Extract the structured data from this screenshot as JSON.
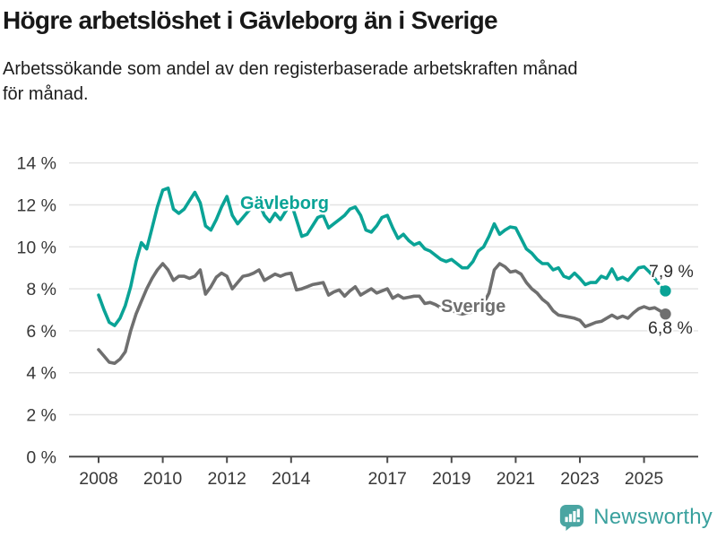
{
  "footer": {
    "brand": "Newsworthy"
  },
  "colors": {
    "gavleborg": "#0aa396",
    "sverige": "#6f6f6f",
    "brand": "#4aa5a2",
    "grid": "#e3e3e3",
    "axis": "#4b4b4b"
  },
  "chart_data": {
    "type": "line",
    "title": "Högre arbetslöshet i Gävleborg än i Sverige",
    "subtitle": "Arbetssökande som andel av den registerbaserade arbetskraften månad\nför månad.",
    "xlabel": "",
    "ylabel": "",
    "grid": "horizontal",
    "legend": "inline-labels",
    "ylim": [
      0,
      14
    ],
    "y_ticks": [
      0,
      2,
      4,
      6,
      8,
      10,
      12,
      14
    ],
    "y_tick_suffix": " %",
    "x_ticks": [
      2008,
      2010,
      2012,
      2014,
      2017,
      2019,
      2021,
      2023,
      2025
    ],
    "x_start_year": 2008.0,
    "x_step_months": 2,
    "series": [
      {
        "key": "gavleborg",
        "name": "Gävleborg",
        "end_label": "7,9 %",
        "dash_tail_points": 3,
        "values": [
          7.7,
          7.0,
          6.4,
          6.25,
          6.6,
          7.2,
          8.1,
          9.3,
          10.2,
          9.9,
          10.9,
          11.9,
          12.7,
          12.8,
          11.8,
          11.6,
          11.8,
          12.2,
          12.6,
          12.1,
          11.0,
          10.8,
          11.3,
          11.9,
          12.4,
          11.5,
          11.1,
          11.4,
          11.7,
          12.0,
          12.1,
          11.5,
          11.2,
          11.6,
          11.3,
          11.7,
          12.1,
          11.3,
          10.5,
          10.6,
          11.0,
          11.4,
          11.5,
          10.9,
          11.1,
          11.3,
          11.5,
          11.8,
          11.9,
          11.5,
          10.8,
          10.7,
          11.0,
          11.4,
          11.5,
          10.9,
          10.4,
          10.6,
          10.3,
          10.1,
          10.2,
          9.9,
          9.8,
          9.6,
          9.4,
          9.3,
          9.4,
          9.2,
          9.0,
          9.0,
          9.3,
          9.8,
          10.0,
          10.5,
          11.1,
          10.6,
          10.8,
          10.95,
          10.9,
          10.4,
          9.9,
          9.7,
          9.4,
          9.2,
          9.2,
          8.9,
          9.0,
          8.6,
          8.5,
          8.75,
          8.5,
          8.2,
          8.3,
          8.3,
          8.6,
          8.5,
          8.95,
          8.45,
          8.55,
          8.4,
          8.7,
          9.0,
          9.05,
          8.8,
          8.5,
          8.15,
          7.9
        ]
      },
      {
        "key": "sverige",
        "name": "Sverige",
        "end_label": "6,8 %",
        "dash_tail_points": 0,
        "values": [
          5.1,
          4.8,
          4.5,
          4.45,
          4.65,
          5.0,
          6.0,
          6.8,
          7.4,
          8.0,
          8.5,
          8.9,
          9.2,
          8.9,
          8.4,
          8.6,
          8.6,
          8.5,
          8.6,
          8.9,
          7.75,
          8.1,
          8.55,
          8.75,
          8.6,
          8.0,
          8.3,
          8.6,
          8.65,
          8.75,
          8.9,
          8.4,
          8.55,
          8.7,
          8.6,
          8.7,
          8.75,
          7.95,
          8.0,
          8.1,
          8.2,
          8.25,
          8.3,
          7.7,
          7.85,
          7.95,
          7.65,
          7.9,
          8.1,
          7.7,
          7.85,
          8.0,
          7.8,
          7.9,
          8.0,
          7.55,
          7.7,
          7.55,
          7.6,
          7.65,
          7.65,
          7.3,
          7.35,
          7.25,
          7.1,
          7.05,
          7.0,
          6.85,
          6.8,
          6.85,
          6.9,
          7.1,
          7.3,
          7.8,
          8.9,
          9.2,
          9.05,
          8.8,
          8.85,
          8.7,
          8.3,
          8.0,
          7.8,
          7.5,
          7.3,
          6.95,
          6.75,
          6.7,
          6.65,
          6.6,
          6.5,
          6.2,
          6.3,
          6.4,
          6.45,
          6.6,
          6.75,
          6.6,
          6.7,
          6.6,
          6.85,
          7.05,
          7.15,
          7.05,
          7.1,
          6.95,
          6.8
        ]
      }
    ]
  }
}
